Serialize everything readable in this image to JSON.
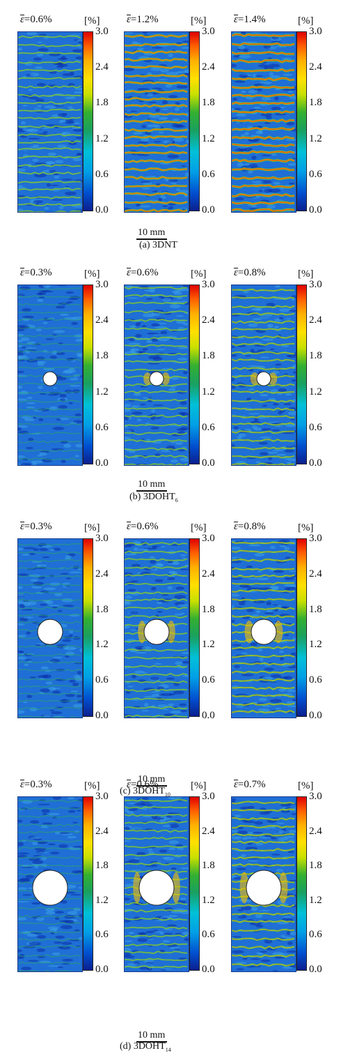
{
  "colorbar": {
    "unit": "[%]",
    "ticks": [
      "3.0",
      "2.4",
      "1.8",
      "1.2",
      "0.6",
      "0.0"
    ]
  },
  "scale_bar": "10 mm",
  "groups": [
    {
      "caption": "(a) 3DNT",
      "caption_sub": "",
      "hole": false,
      "panels": [
        {
          "strain_value": "=0.6%",
          "level": 0.45
        },
        {
          "strain_value": "=1.2%",
          "level": 0.85
        },
        {
          "strain_value": "=1.4%",
          "level": 0.95
        }
      ]
    },
    {
      "caption": "(b) 3DOHT",
      "caption_sub": "6",
      "hole": true,
      "panels": [
        {
          "strain_value": "=0.3%",
          "level": 0.15
        },
        {
          "strain_value": "=0.6%",
          "level": 0.45
        },
        {
          "strain_value": "=0.8%",
          "level": 0.55
        }
      ]
    },
    {
      "caption": "(c) 3DOHT",
      "caption_sub": "10",
      "hole": true,
      "panels": [
        {
          "strain_value": "=0.3%",
          "level": 0.15
        },
        {
          "strain_value": "=0.6%",
          "level": 0.45
        },
        {
          "strain_value": "=0.8%",
          "level": 0.6
        }
      ]
    },
    {
      "caption": "(d) 3DOHT",
      "caption_sub": "14",
      "hole": true,
      "panels": [
        {
          "strain_value": "=0.3%",
          "level": 0.15
        },
        {
          "strain_value": "=0.6%",
          "level": 0.45
        },
        {
          "strain_value": "=0.7%",
          "level": 0.6
        }
      ]
    }
  ]
}
